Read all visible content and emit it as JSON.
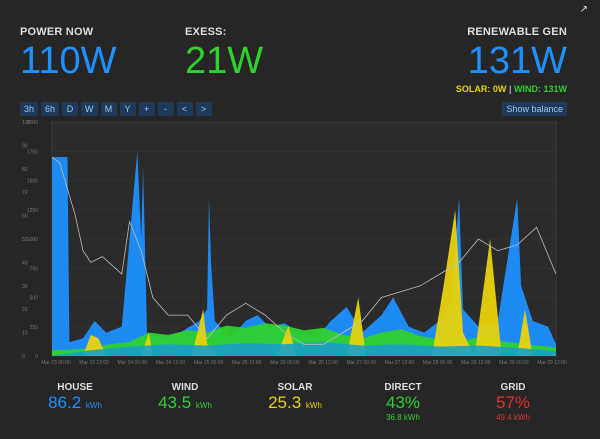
{
  "header": {
    "power_now": {
      "label": "POWER NOW",
      "value": "110W"
    },
    "exess": {
      "label": "EXESS:",
      "value": "21W"
    },
    "renewable": {
      "label": "RENEWABLE GEN",
      "value": "131W",
      "solar": "SOLAR: 0W",
      "sep": "|",
      "wind": "WIND: 131W"
    }
  },
  "toolbar": {
    "buttons": [
      "3h",
      "6h",
      "D",
      "W",
      "M",
      "Y",
      "+",
      "-",
      "<",
      ">"
    ],
    "show_balance": "Show balance"
  },
  "chart_data": {
    "type": "area",
    "y_ticks": [
      "2000",
      "1750",
      "1500",
      "1250",
      "1000",
      "750",
      "500",
      "250",
      "0"
    ],
    "y2_ticks": [
      "100",
      "90",
      "80",
      "70",
      "60",
      "50",
      "40",
      "30",
      "20",
      "10",
      "0"
    ],
    "x_ticks": [
      "Mar 23 00:00",
      "Mar 23 12:00",
      "Mar 24 00:00",
      "Mar 24 12:00",
      "Mar 25 00:00",
      "Mar 25 12:00",
      "Mar 26 00:00",
      "Mar 26 12:00",
      "Mar 27 00:00",
      "Mar 27 12:00",
      "Mar 28 00:00",
      "Mar 28 12:00",
      "Mar 29 00:00",
      "Mar 29 12:00"
    ],
    "ylim": [
      0,
      2000
    ],
    "series_colors": {
      "house": "#1e90ff",
      "wind": "#2ed12e",
      "solar": "#e8d20c",
      "direct": "#1aa0c8",
      "balance": "#bbbbbb"
    },
    "house": [
      [
        0,
        1700
      ],
      [
        0.2,
        1700
      ],
      [
        0.4,
        1700
      ],
      [
        0.45,
        120
      ],
      [
        0.8,
        150
      ],
      [
        1.1,
        300
      ],
      [
        1.4,
        200
      ],
      [
        1.8,
        250
      ],
      [
        2.2,
        1750
      ],
      [
        2.3,
        1000
      ],
      [
        2.35,
        1600
      ],
      [
        2.45,
        200
      ],
      [
        2.8,
        150
      ],
      [
        3.3,
        200
      ],
      [
        3.8,
        300
      ],
      [
        4.0,
        400
      ],
      [
        4.05,
        1350
      ],
      [
        4.1,
        800
      ],
      [
        4.2,
        300
      ],
      [
        4.6,
        150
      ],
      [
        5.0,
        300
      ],
      [
        5.3,
        350
      ],
      [
        5.6,
        250
      ],
      [
        6.0,
        280
      ],
      [
        6.4,
        200
      ],
      [
        6.8,
        150
      ],
      [
        7.2,
        300
      ],
      [
        7.6,
        420
      ],
      [
        8.0,
        200
      ],
      [
        8.5,
        350
      ],
      [
        8.8,
        500
      ],
      [
        9.2,
        250
      ],
      [
        9.6,
        200
      ],
      [
        10.0,
        300
      ],
      [
        10.3,
        500
      ],
      [
        10.5,
        1350
      ],
      [
        10.6,
        400
      ],
      [
        11.0,
        250
      ],
      [
        11.5,
        300
      ],
      [
        12.0,
        1350
      ],
      [
        12.1,
        600
      ],
      [
        12.4,
        300
      ],
      [
        12.8,
        250
      ],
      [
        13.0,
        100
      ]
    ],
    "wind": [
      [
        0,
        50
      ],
      [
        0.8,
        60
      ],
      [
        1.5,
        100
      ],
      [
        2.0,
        120
      ],
      [
        2.5,
        200
      ],
      [
        3.0,
        180
      ],
      [
        3.5,
        220
      ],
      [
        4.0,
        200
      ],
      [
        4.5,
        260
      ],
      [
        5.0,
        240
      ],
      [
        5.5,
        280
      ],
      [
        6.0,
        260
      ],
      [
        6.5,
        220
      ],
      [
        7.0,
        240
      ],
      [
        7.5,
        180
      ],
      [
        8.0,
        150
      ],
      [
        8.5,
        200
      ],
      [
        9.0,
        230
      ],
      [
        9.5,
        170
      ],
      [
        10.0,
        140
      ],
      [
        10.5,
        120
      ],
      [
        11.0,
        160
      ],
      [
        11.5,
        130
      ],
      [
        12.0,
        110
      ],
      [
        12.5,
        90
      ],
      [
        13.0,
        70
      ]
    ],
    "solar": [
      [
        0,
        0
      ],
      [
        0.8,
        0
      ],
      [
        1.0,
        180
      ],
      [
        1.2,
        150
      ],
      [
        1.4,
        0
      ],
      [
        2.3,
        0
      ],
      [
        2.5,
        200
      ],
      [
        2.6,
        0
      ],
      [
        3.6,
        0
      ],
      [
        3.9,
        400
      ],
      [
        4.0,
        100
      ],
      [
        4.3,
        0
      ],
      [
        5.8,
        0
      ],
      [
        6.1,
        260
      ],
      [
        6.3,
        0
      ],
      [
        7.6,
        0
      ],
      [
        7.9,
        500
      ],
      [
        8.1,
        0
      ],
      [
        9.8,
        0
      ],
      [
        10.1,
        600
      ],
      [
        10.4,
        1250
      ],
      [
        10.6,
        200
      ],
      [
        10.9,
        0
      ],
      [
        11.1,
        500
      ],
      [
        11.3,
        1000
      ],
      [
        11.6,
        0
      ],
      [
        12.0,
        0
      ],
      [
        12.2,
        400
      ],
      [
        12.4,
        0
      ],
      [
        13.0,
        0
      ]
    ],
    "direct": [
      [
        0,
        0
      ],
      [
        1.0,
        50
      ],
      [
        2.0,
        80
      ],
      [
        3.0,
        100
      ],
      [
        4.0,
        90
      ],
      [
        5.0,
        110
      ],
      [
        6.0,
        100
      ],
      [
        7.0,
        120
      ],
      [
        8.0,
        90
      ],
      [
        9.0,
        100
      ],
      [
        10.0,
        80
      ],
      [
        11.0,
        90
      ],
      [
        12.0,
        70
      ],
      [
        13.0,
        40
      ]
    ],
    "balance": [
      [
        0,
        1700
      ],
      [
        0.2,
        1650
      ],
      [
        0.6,
        1200
      ],
      [
        0.8,
        900
      ],
      [
        1.0,
        800
      ],
      [
        1.3,
        850
      ],
      [
        1.8,
        700
      ],
      [
        2.0,
        1150
      ],
      [
        2.3,
        900
      ],
      [
        2.6,
        500
      ],
      [
        3.0,
        350
      ],
      [
        3.5,
        350
      ],
      [
        4.0,
        150
      ],
      [
        4.5,
        350
      ],
      [
        5.0,
        450
      ],
      [
        5.5,
        350
      ],
      [
        6.0,
        200
      ],
      [
        6.5,
        100
      ],
      [
        7.0,
        100
      ],
      [
        7.5,
        200
      ],
      [
        8.0,
        300
      ],
      [
        8.5,
        500
      ],
      [
        9.0,
        550
      ],
      [
        9.5,
        600
      ],
      [
        10.0,
        700
      ],
      [
        10.5,
        800
      ],
      [
        11.0,
        1000
      ],
      [
        11.5,
        900
      ],
      [
        12.0,
        950
      ],
      [
        12.5,
        1100
      ],
      [
        13.0,
        700
      ]
    ]
  },
  "stats": [
    {
      "label": "HOUSE",
      "value": "86.2",
      "unit": "kWh",
      "sub": ""
    },
    {
      "label": "WIND",
      "value": "43.5",
      "unit": "kWh",
      "sub": ""
    },
    {
      "label": "SOLAR",
      "value": "25.3",
      "unit": "kWh",
      "sub": ""
    },
    {
      "label": "DIRECT",
      "value": "43%",
      "unit": "",
      "sub": "36.8 kWh"
    },
    {
      "label": "GRID",
      "value": "57%",
      "unit": "",
      "sub": "49.4 kWh"
    }
  ]
}
